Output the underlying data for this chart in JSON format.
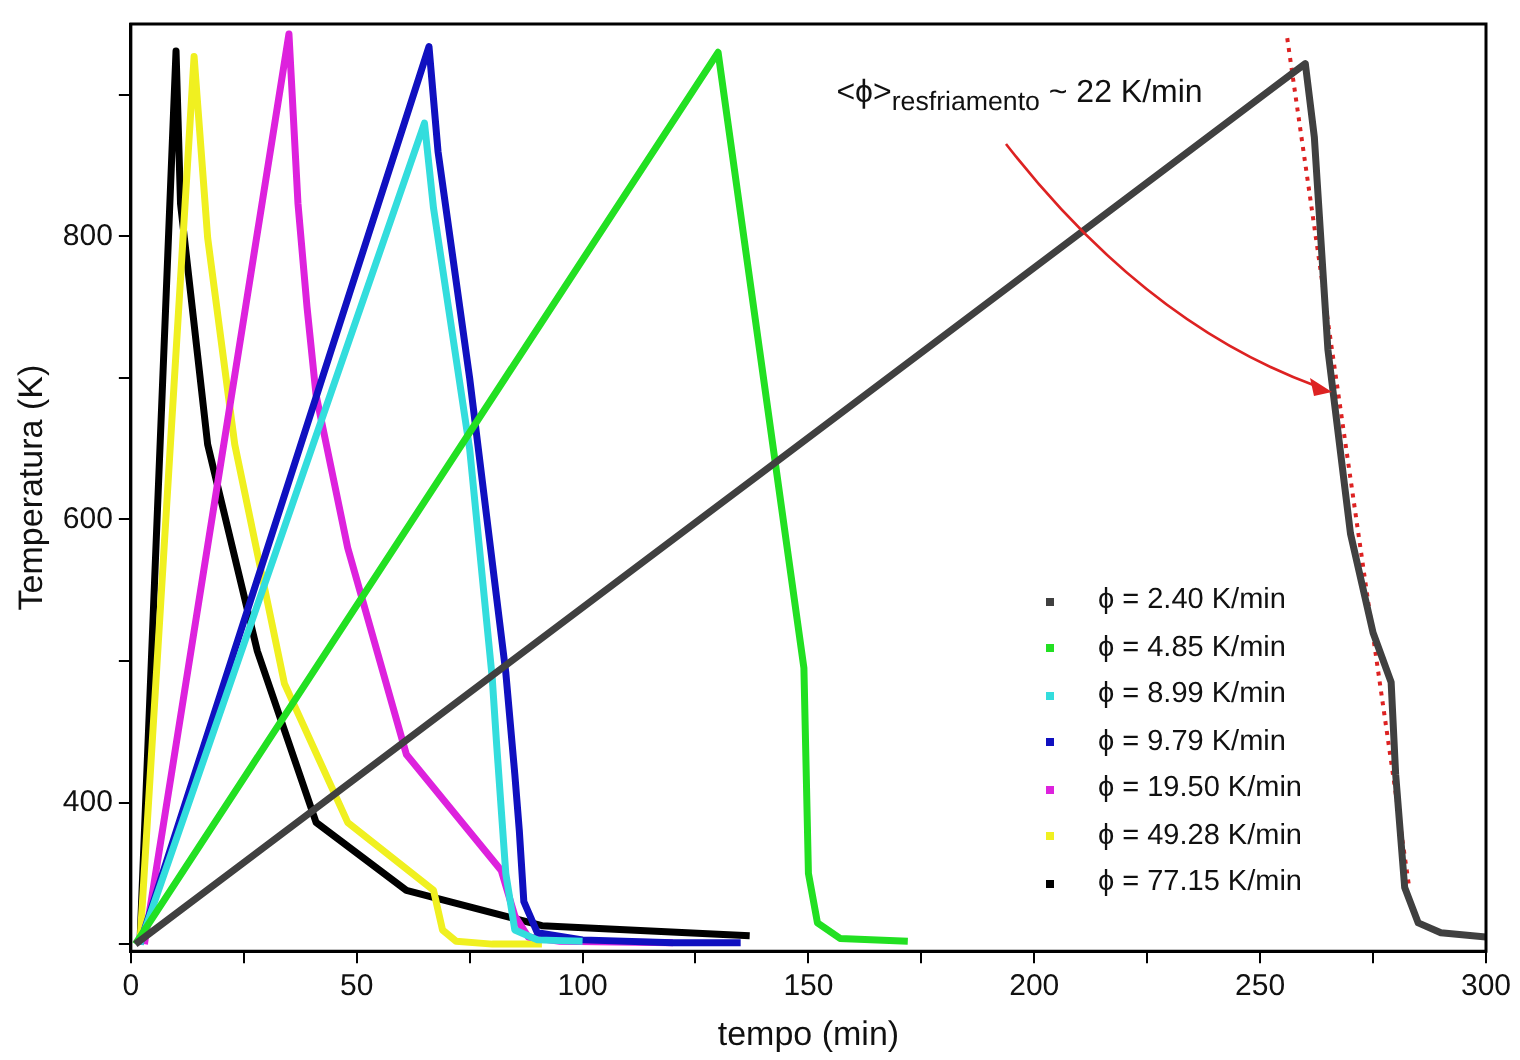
{
  "chart_data": {
    "type": "line",
    "xlabel": "tempo (min)",
    "ylabel": "Temperatura (K)",
    "xlim": [
      0,
      300
    ],
    "xticks": [
      0,
      {
        "value": 25,
        "label": null
      },
      50,
      {
        "value": 75,
        "label": null
      },
      100,
      {
        "value": 125,
        "label": null
      },
      150,
      {
        "value": 175,
        "label": null
      },
      200,
      {
        "value": 225,
        "label": null
      },
      250,
      {
        "value": 275,
        "label": null
      },
      300
    ],
    "ylim": [
      295,
      950
    ],
    "yticks": [
      {
        "value": 300,
        "label": null
      },
      400,
      {
        "value": 500,
        "label": null
      },
      600,
      {
        "value": 700,
        "label": null
      },
      800,
      {
        "value": 900,
        "label": null
      }
    ],
    "grid": false,
    "legend": "bottom right",
    "marker": "none",
    "annotations": [
      {
        "text": "<ϕ>$_{resfriamento}$ ~ 22 K/min",
        "x": 266,
        "y": 690
      }
    ],
    "series": [
      {
        "name": "ϕ = 2.40 K/min",
        "color": "#404040",
        "x": [
          1,
          260,
          262,
          265,
          270,
          275,
          279,
          280,
          282,
          285,
          290,
          300
        ],
        "values": [
          300,
          922,
          870,
          720,
          590,
          520,
          485,
          420,
          340,
          315,
          308,
          305
        ]
      },
      {
        "name": "ϕ = 4.85 K/min",
        "color": "#22e022",
        "x": [
          1,
          130,
          149,
          150,
          152,
          157,
          172
        ],
        "values": [
          300,
          930,
          495,
          350,
          315,
          304,
          302
        ]
      },
      {
        "name": "ϕ = 8.99 K/min",
        "color": "#33dddd",
        "x": [
          2,
          65,
          67,
          75,
          80,
          81,
          83,
          85,
          90,
          100
        ],
        "values": [
          300,
          880,
          820,
          650,
          488,
          440,
          350,
          310,
          303,
          302
        ]
      },
      {
        "name": "ϕ = 9.79 K/min",
        "color": "#1010c0",
        "x": [
          2,
          66,
          68,
          75,
          83,
          85,
          86,
          87,
          90,
          100,
          120,
          135
        ],
        "values": [
          300,
          934,
          860,
          700,
          492,
          420,
          380,
          330,
          308,
          303,
          301,
          301
        ]
      },
      {
        "name": "ϕ = 19.50 K/min",
        "color": "#dd22dd",
        "x": [
          3,
          35,
          37,
          39,
          41,
          48,
          61,
          82,
          85,
          88,
          95,
          120
        ],
        "values": [
          300,
          943,
          823,
          750,
          688,
          580,
          434,
          352,
          320,
          305,
          302,
          301
        ]
      },
      {
        "name": "ϕ = 49.28 K/min",
        "color": "#f0f020",
        "x": [
          2,
          14,
          17,
          23,
          34,
          48,
          67,
          69,
          72,
          80,
          91
        ],
        "values": [
          300,
          927,
          799,
          653,
          484,
          386,
          338,
          310,
          302,
          300,
          300
        ]
      },
      {
        "name": "ϕ = 77.15 K/min",
        "color": "#000000",
        "x": [
          2,
          10,
          11,
          17,
          28,
          41,
          61,
          91,
          130,
          137
        ],
        "values": [
          300,
          931,
          823,
          653,
          507,
          386,
          338,
          313,
          307,
          306
        ]
      },
      {
        "color": "#dd2222",
        "line_style": "dotted",
        "x": [
          256,
          283
        ],
        "values": [
          940,
          340
        ]
      }
    ]
  }
}
